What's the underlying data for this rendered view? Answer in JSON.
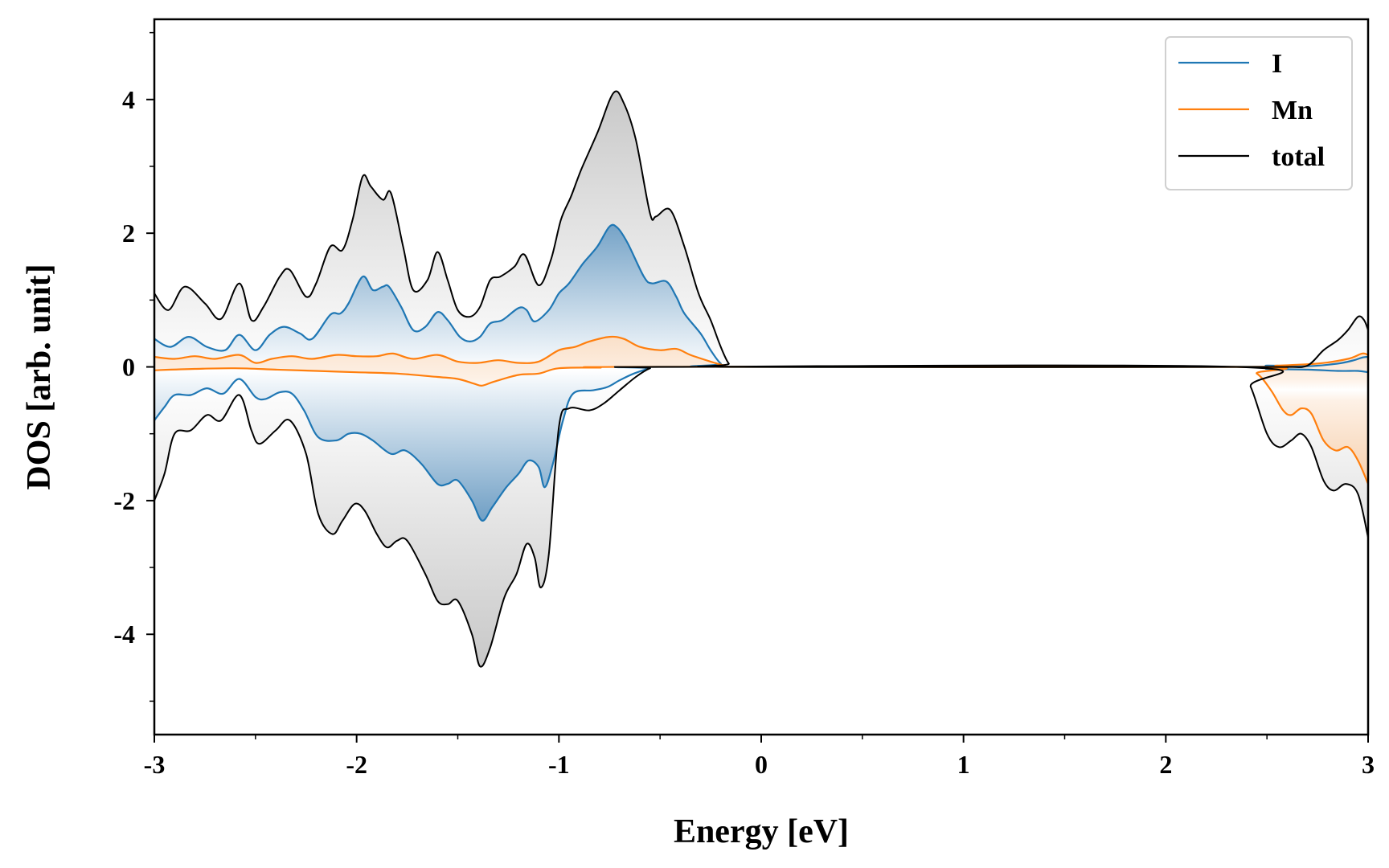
{
  "chart_data": {
    "type": "line",
    "xlabel": "Energy [eV]",
    "ylabel": "DOS [arb. unit]",
    "xlim": [
      -3,
      3
    ],
    "ylim": [
      -5.5,
      5.2
    ],
    "x_ticks": [
      -3,
      -2,
      -1,
      0,
      1,
      2,
      3
    ],
    "x_tick_labels": [
      "-3",
      "-2",
      "-1",
      "0",
      "1",
      "2",
      "3"
    ],
    "y_ticks": [
      -4,
      -2,
      0,
      2,
      4
    ],
    "y_tick_labels": [
      "-4",
      "-2",
      "0",
      "2",
      "4"
    ],
    "x_minor_step": 0.5,
    "y_minor_step": 1,
    "grid": false,
    "legend_position": "top-right",
    "series": [
      {
        "name": "I",
        "color": "#1f77b4",
        "fill": "vertical-gradient-blue",
        "spin_up": [
          [
            -3.0,
            0.42
          ],
          [
            -2.92,
            0.3
          ],
          [
            -2.83,
            0.45
          ],
          [
            -2.74,
            0.3
          ],
          [
            -2.65,
            0.25
          ],
          [
            -2.58,
            0.48
          ],
          [
            -2.5,
            0.25
          ],
          [
            -2.43,
            0.48
          ],
          [
            -2.36,
            0.6
          ],
          [
            -2.28,
            0.5
          ],
          [
            -2.22,
            0.42
          ],
          [
            -2.13,
            0.78
          ],
          [
            -2.08,
            0.8
          ],
          [
            -2.04,
            0.95
          ],
          [
            -1.97,
            1.35
          ],
          [
            -1.92,
            1.15
          ],
          [
            -1.87,
            1.2
          ],
          [
            -1.84,
            1.2
          ],
          [
            -1.78,
            0.9
          ],
          [
            -1.72,
            0.55
          ],
          [
            -1.66,
            0.6
          ],
          [
            -1.6,
            0.82
          ],
          [
            -1.55,
            0.7
          ],
          [
            -1.49,
            0.45
          ],
          [
            -1.44,
            0.38
          ],
          [
            -1.39,
            0.45
          ],
          [
            -1.34,
            0.65
          ],
          [
            -1.28,
            0.7
          ],
          [
            -1.2,
            0.88
          ],
          [
            -1.16,
            0.85
          ],
          [
            -1.12,
            0.68
          ],
          [
            -1.05,
            0.85
          ],
          [
            -1.0,
            1.1
          ],
          [
            -0.95,
            1.25
          ],
          [
            -0.88,
            1.55
          ],
          [
            -0.81,
            1.8
          ],
          [
            -0.75,
            2.1
          ],
          [
            -0.71,
            2.08
          ],
          [
            -0.66,
            1.85
          ],
          [
            -0.58,
            1.35
          ],
          [
            -0.54,
            1.25
          ],
          [
            -0.47,
            1.28
          ],
          [
            -0.42,
            1.05
          ],
          [
            -0.38,
            0.8
          ],
          [
            -0.3,
            0.5
          ],
          [
            -0.25,
            0.25
          ],
          [
            -0.2,
            0.05
          ],
          [
            -0.15,
            0.0
          ],
          [
            2.35,
            0.0
          ],
          [
            2.5,
            0.02
          ],
          [
            2.7,
            0.01
          ],
          [
            2.85,
            0.05
          ],
          [
            2.93,
            0.1
          ],
          [
            2.97,
            0.14
          ],
          [
            3.0,
            0.15
          ]
        ],
        "spin_down": [
          [
            -3.0,
            -0.8
          ],
          [
            -2.95,
            -0.6
          ],
          [
            -2.9,
            -0.42
          ],
          [
            -2.82,
            -0.42
          ],
          [
            -2.74,
            -0.32
          ],
          [
            -2.66,
            -0.4
          ],
          [
            -2.58,
            -0.18
          ],
          [
            -2.5,
            -0.45
          ],
          [
            -2.45,
            -0.48
          ],
          [
            -2.38,
            -0.38
          ],
          [
            -2.32,
            -0.4
          ],
          [
            -2.26,
            -0.65
          ],
          [
            -2.19,
            -1.05
          ],
          [
            -2.1,
            -1.1
          ],
          [
            -2.04,
            -1.0
          ],
          [
            -1.98,
            -1.0
          ],
          [
            -1.92,
            -1.1
          ],
          [
            -1.83,
            -1.3
          ],
          [
            -1.76,
            -1.25
          ],
          [
            -1.68,
            -1.45
          ],
          [
            -1.6,
            -1.75
          ],
          [
            -1.55,
            -1.75
          ],
          [
            -1.5,
            -1.7
          ],
          [
            -1.43,
            -2.0
          ],
          [
            -1.38,
            -2.3
          ],
          [
            -1.33,
            -2.1
          ],
          [
            -1.26,
            -1.8
          ],
          [
            -1.2,
            -1.6
          ],
          [
            -1.15,
            -1.4
          ],
          [
            -1.1,
            -1.5
          ],
          [
            -1.07,
            -1.8
          ],
          [
            -1.03,
            -1.45
          ],
          [
            -0.98,
            -0.8
          ],
          [
            -0.93,
            -0.4
          ],
          [
            -0.83,
            -0.35
          ],
          [
            -0.76,
            -0.3
          ],
          [
            -0.7,
            -0.2
          ],
          [
            -0.63,
            -0.1
          ],
          [
            -0.55,
            -0.02
          ],
          [
            -0.5,
            0.0
          ],
          [
            2.35,
            0.0
          ],
          [
            2.5,
            -0.03
          ],
          [
            2.7,
            -0.04
          ],
          [
            2.85,
            -0.06
          ],
          [
            2.95,
            -0.06
          ],
          [
            3.0,
            -0.08
          ]
        ]
      },
      {
        "name": "Mn",
        "color": "#ff7f0e",
        "fill": "vertical-gradient-orange",
        "spin_up": [
          [
            -3.0,
            0.15
          ],
          [
            -2.9,
            0.12
          ],
          [
            -2.8,
            0.16
          ],
          [
            -2.7,
            0.12
          ],
          [
            -2.58,
            0.18
          ],
          [
            -2.5,
            0.06
          ],
          [
            -2.42,
            0.12
          ],
          [
            -2.32,
            0.16
          ],
          [
            -2.22,
            0.12
          ],
          [
            -2.1,
            0.18
          ],
          [
            -2.0,
            0.16
          ],
          [
            -1.9,
            0.16
          ],
          [
            -1.82,
            0.2
          ],
          [
            -1.72,
            0.12
          ],
          [
            -1.6,
            0.18
          ],
          [
            -1.5,
            0.08
          ],
          [
            -1.4,
            0.06
          ],
          [
            -1.3,
            0.1
          ],
          [
            -1.2,
            0.06
          ],
          [
            -1.1,
            0.08
          ],
          [
            -1.0,
            0.25
          ],
          [
            -0.92,
            0.3
          ],
          [
            -0.85,
            0.38
          ],
          [
            -0.75,
            0.45
          ],
          [
            -0.68,
            0.42
          ],
          [
            -0.6,
            0.3
          ],
          [
            -0.5,
            0.25
          ],
          [
            -0.42,
            0.27
          ],
          [
            -0.35,
            0.18
          ],
          [
            -0.25,
            0.08
          ],
          [
            -0.18,
            0.02
          ],
          [
            -0.12,
            0.0
          ],
          [
            2.35,
            0.0
          ],
          [
            2.55,
            0.02
          ],
          [
            2.75,
            0.05
          ],
          [
            2.9,
            0.12
          ],
          [
            2.97,
            0.2
          ],
          [
            3.0,
            0.18
          ]
        ],
        "spin_down": [
          [
            -3.0,
            -0.05
          ],
          [
            -2.8,
            -0.03
          ],
          [
            -2.6,
            -0.02
          ],
          [
            -2.4,
            -0.04
          ],
          [
            -2.2,
            -0.06
          ],
          [
            -2.0,
            -0.08
          ],
          [
            -1.8,
            -0.1
          ],
          [
            -1.6,
            -0.15
          ],
          [
            -1.5,
            -0.18
          ],
          [
            -1.42,
            -0.25
          ],
          [
            -1.38,
            -0.28
          ],
          [
            -1.32,
            -0.22
          ],
          [
            -1.2,
            -0.12
          ],
          [
            -1.1,
            -0.1
          ],
          [
            -1.0,
            -0.02
          ],
          [
            -0.8,
            -0.01
          ],
          [
            -0.6,
            0.0
          ],
          [
            2.35,
            0.0
          ],
          [
            2.45,
            -0.1
          ],
          [
            2.52,
            -0.35
          ],
          [
            2.58,
            -0.65
          ],
          [
            2.62,
            -0.72
          ],
          [
            2.67,
            -0.62
          ],
          [
            2.72,
            -0.7
          ],
          [
            2.78,
            -1.1
          ],
          [
            2.84,
            -1.25
          ],
          [
            2.9,
            -1.2
          ],
          [
            2.95,
            -1.4
          ],
          [
            3.0,
            -1.75
          ]
        ]
      },
      {
        "name": "total",
        "color": "#000000",
        "fill": "vertical-gradient-gray",
        "spin_up": [
          [
            -3.0,
            1.1
          ],
          [
            -2.93,
            0.85
          ],
          [
            -2.85,
            1.2
          ],
          [
            -2.75,
            0.95
          ],
          [
            -2.67,
            0.72
          ],
          [
            -2.58,
            1.25
          ],
          [
            -2.52,
            0.7
          ],
          [
            -2.46,
            0.9
          ],
          [
            -2.38,
            1.35
          ],
          [
            -2.33,
            1.45
          ],
          [
            -2.25,
            1.05
          ],
          [
            -2.2,
            1.25
          ],
          [
            -2.13,
            1.8
          ],
          [
            -2.07,
            1.75
          ],
          [
            -2.02,
            2.2
          ],
          [
            -1.97,
            2.85
          ],
          [
            -1.93,
            2.7
          ],
          [
            -1.87,
            2.5
          ],
          [
            -1.83,
            2.6
          ],
          [
            -1.77,
            1.8
          ],
          [
            -1.72,
            1.15
          ],
          [
            -1.65,
            1.3
          ],
          [
            -1.6,
            1.72
          ],
          [
            -1.55,
            1.3
          ],
          [
            -1.5,
            0.85
          ],
          [
            -1.44,
            0.75
          ],
          [
            -1.39,
            0.9
          ],
          [
            -1.34,
            1.3
          ],
          [
            -1.29,
            1.35
          ],
          [
            -1.22,
            1.5
          ],
          [
            -1.17,
            1.68
          ],
          [
            -1.1,
            1.22
          ],
          [
            -1.04,
            1.6
          ],
          [
            -0.99,
            2.2
          ],
          [
            -0.94,
            2.55
          ],
          [
            -0.89,
            2.95
          ],
          [
            -0.81,
            3.5
          ],
          [
            -0.73,
            4.1
          ],
          [
            -0.68,
            3.95
          ],
          [
            -0.62,
            3.4
          ],
          [
            -0.55,
            2.3
          ],
          [
            -0.52,
            2.25
          ],
          [
            -0.45,
            2.35
          ],
          [
            -0.38,
            1.8
          ],
          [
            -0.31,
            1.1
          ],
          [
            -0.25,
            0.7
          ],
          [
            -0.2,
            0.3
          ],
          [
            -0.16,
            0.05
          ],
          [
            -0.12,
            0.0
          ],
          [
            2.35,
            0.0
          ],
          [
            2.6,
            0.0
          ],
          [
            2.7,
            0.02
          ],
          [
            2.78,
            0.25
          ],
          [
            2.85,
            0.4
          ],
          [
            2.9,
            0.55
          ],
          [
            2.95,
            0.75
          ],
          [
            2.98,
            0.7
          ],
          [
            3.0,
            0.55
          ]
        ],
        "spin_down": [
          [
            -3.0,
            -2.0
          ],
          [
            -2.95,
            -1.6
          ],
          [
            -2.9,
            -1.0
          ],
          [
            -2.82,
            -0.95
          ],
          [
            -2.74,
            -0.72
          ],
          [
            -2.67,
            -0.8
          ],
          [
            -2.58,
            -0.42
          ],
          [
            -2.52,
            -0.95
          ],
          [
            -2.48,
            -1.15
          ],
          [
            -2.4,
            -0.95
          ],
          [
            -2.33,
            -0.8
          ],
          [
            -2.25,
            -1.3
          ],
          [
            -2.19,
            -2.2
          ],
          [
            -2.12,
            -2.5
          ],
          [
            -2.07,
            -2.3
          ],
          [
            -2.01,
            -2.05
          ],
          [
            -1.96,
            -2.15
          ],
          [
            -1.9,
            -2.5
          ],
          [
            -1.85,
            -2.7
          ],
          [
            -1.8,
            -2.6
          ],
          [
            -1.75,
            -2.6
          ],
          [
            -1.66,
            -3.1
          ],
          [
            -1.6,
            -3.5
          ],
          [
            -1.55,
            -3.55
          ],
          [
            -1.5,
            -3.5
          ],
          [
            -1.43,
            -4.0
          ],
          [
            -1.39,
            -4.48
          ],
          [
            -1.34,
            -4.2
          ],
          [
            -1.27,
            -3.45
          ],
          [
            -1.21,
            -3.1
          ],
          [
            -1.16,
            -2.65
          ],
          [
            -1.12,
            -2.85
          ],
          [
            -1.09,
            -3.3
          ],
          [
            -1.05,
            -2.8
          ],
          [
            -1.0,
            -0.9
          ],
          [
            -0.95,
            -0.62
          ],
          [
            -0.85,
            -0.65
          ],
          [
            -0.78,
            -0.55
          ],
          [
            -0.7,
            -0.35
          ],
          [
            -0.62,
            -0.15
          ],
          [
            -0.55,
            -0.02
          ],
          [
            -0.5,
            0.0
          ],
          [
            2.35,
            0.0
          ],
          [
            2.42,
            -0.3
          ],
          [
            2.5,
            -1.0
          ],
          [
            2.56,
            -1.2
          ],
          [
            2.62,
            -1.1
          ],
          [
            2.67,
            -1.0
          ],
          [
            2.72,
            -1.2
          ],
          [
            2.78,
            -1.7
          ],
          [
            2.83,
            -1.85
          ],
          [
            2.89,
            -1.75
          ],
          [
            2.95,
            -1.9
          ],
          [
            3.0,
            -2.55
          ]
        ]
      }
    ]
  }
}
